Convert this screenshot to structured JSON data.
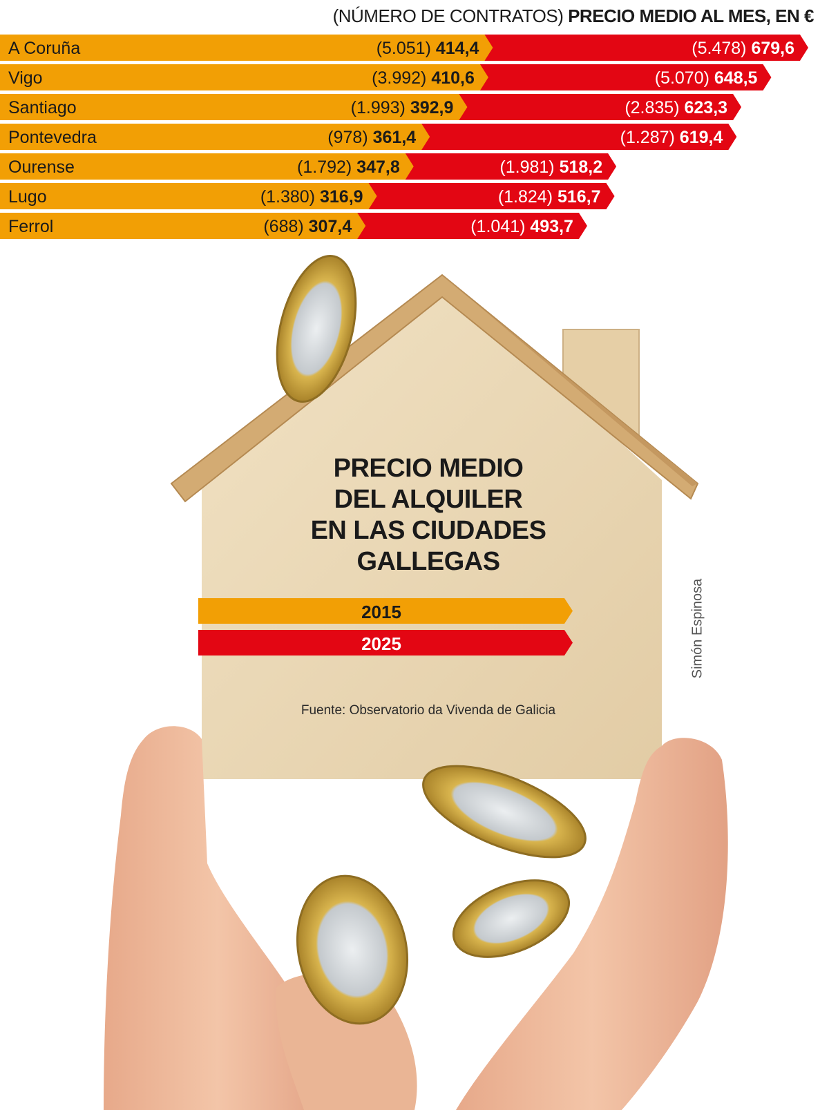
{
  "header": {
    "prefix": "(NÚMERO DE CONTRATOS)",
    "main": "PRECIO MEDIO AL MES, EN €"
  },
  "title_lines": [
    "PRECIO MEDIO",
    "DEL ALQUILER",
    "EN LAS CIUDADES",
    "GALLEGAS"
  ],
  "source": "Fuente: Observatorio da Vivenda de Galicia",
  "credit": "Simón Espinosa",
  "colors": {
    "y2015": "#f29f05",
    "y2025": "#e30613",
    "wood": "#ead8b6",
    "roof": "#d6b07a"
  },
  "chart_data": {
    "type": "bar",
    "title": "PRECIO MEDIO DEL ALQUILER EN LAS CIUDADES GALLEGAS",
    "value_label": "PRECIO MEDIO AL MES, EN €",
    "count_label": "NÚMERO DE CONTRATOS",
    "categories": [
      "A Coruña",
      "Vigo",
      "Santiago",
      "Pontevedra",
      "Ourense",
      "Lugo",
      "Ferrol"
    ],
    "series": [
      {
        "name": "2015",
        "color": "#f29f05",
        "values": [
          414.4,
          410.6,
          392.9,
          361.4,
          347.8,
          316.9,
          307.4
        ],
        "value_labels": [
          "414,4",
          "410,6",
          "392,9",
          "361,4",
          "347,8",
          "316,9",
          "307,4"
        ],
        "counts": [
          5051,
          3992,
          1993,
          978,
          1792,
          1380,
          688
        ],
        "count_labels": [
          "(5.051)",
          "(3.992)",
          "(1.993)",
          "(978)",
          "(1.792)",
          "(1.380)",
          "(688)"
        ]
      },
      {
        "name": "2025",
        "color": "#e30613",
        "values": [
          679.6,
          648.5,
          623.3,
          619.4,
          518.2,
          516.7,
          493.7
        ],
        "value_labels": [
          "679,6",
          "648,5",
          "623,3",
          "619,4",
          "518,2",
          "516,7",
          "493,7"
        ],
        "counts": [
          5478,
          5070,
          2835,
          1287,
          1981,
          1824,
          1041
        ],
        "count_labels": [
          "(5.478)",
          "(5.070)",
          "(2.835)",
          "(1.287)",
          "(1.981)",
          "(1.824)",
          "(1.041)"
        ]
      }
    ],
    "legend_position": "center",
    "grid": false
  }
}
